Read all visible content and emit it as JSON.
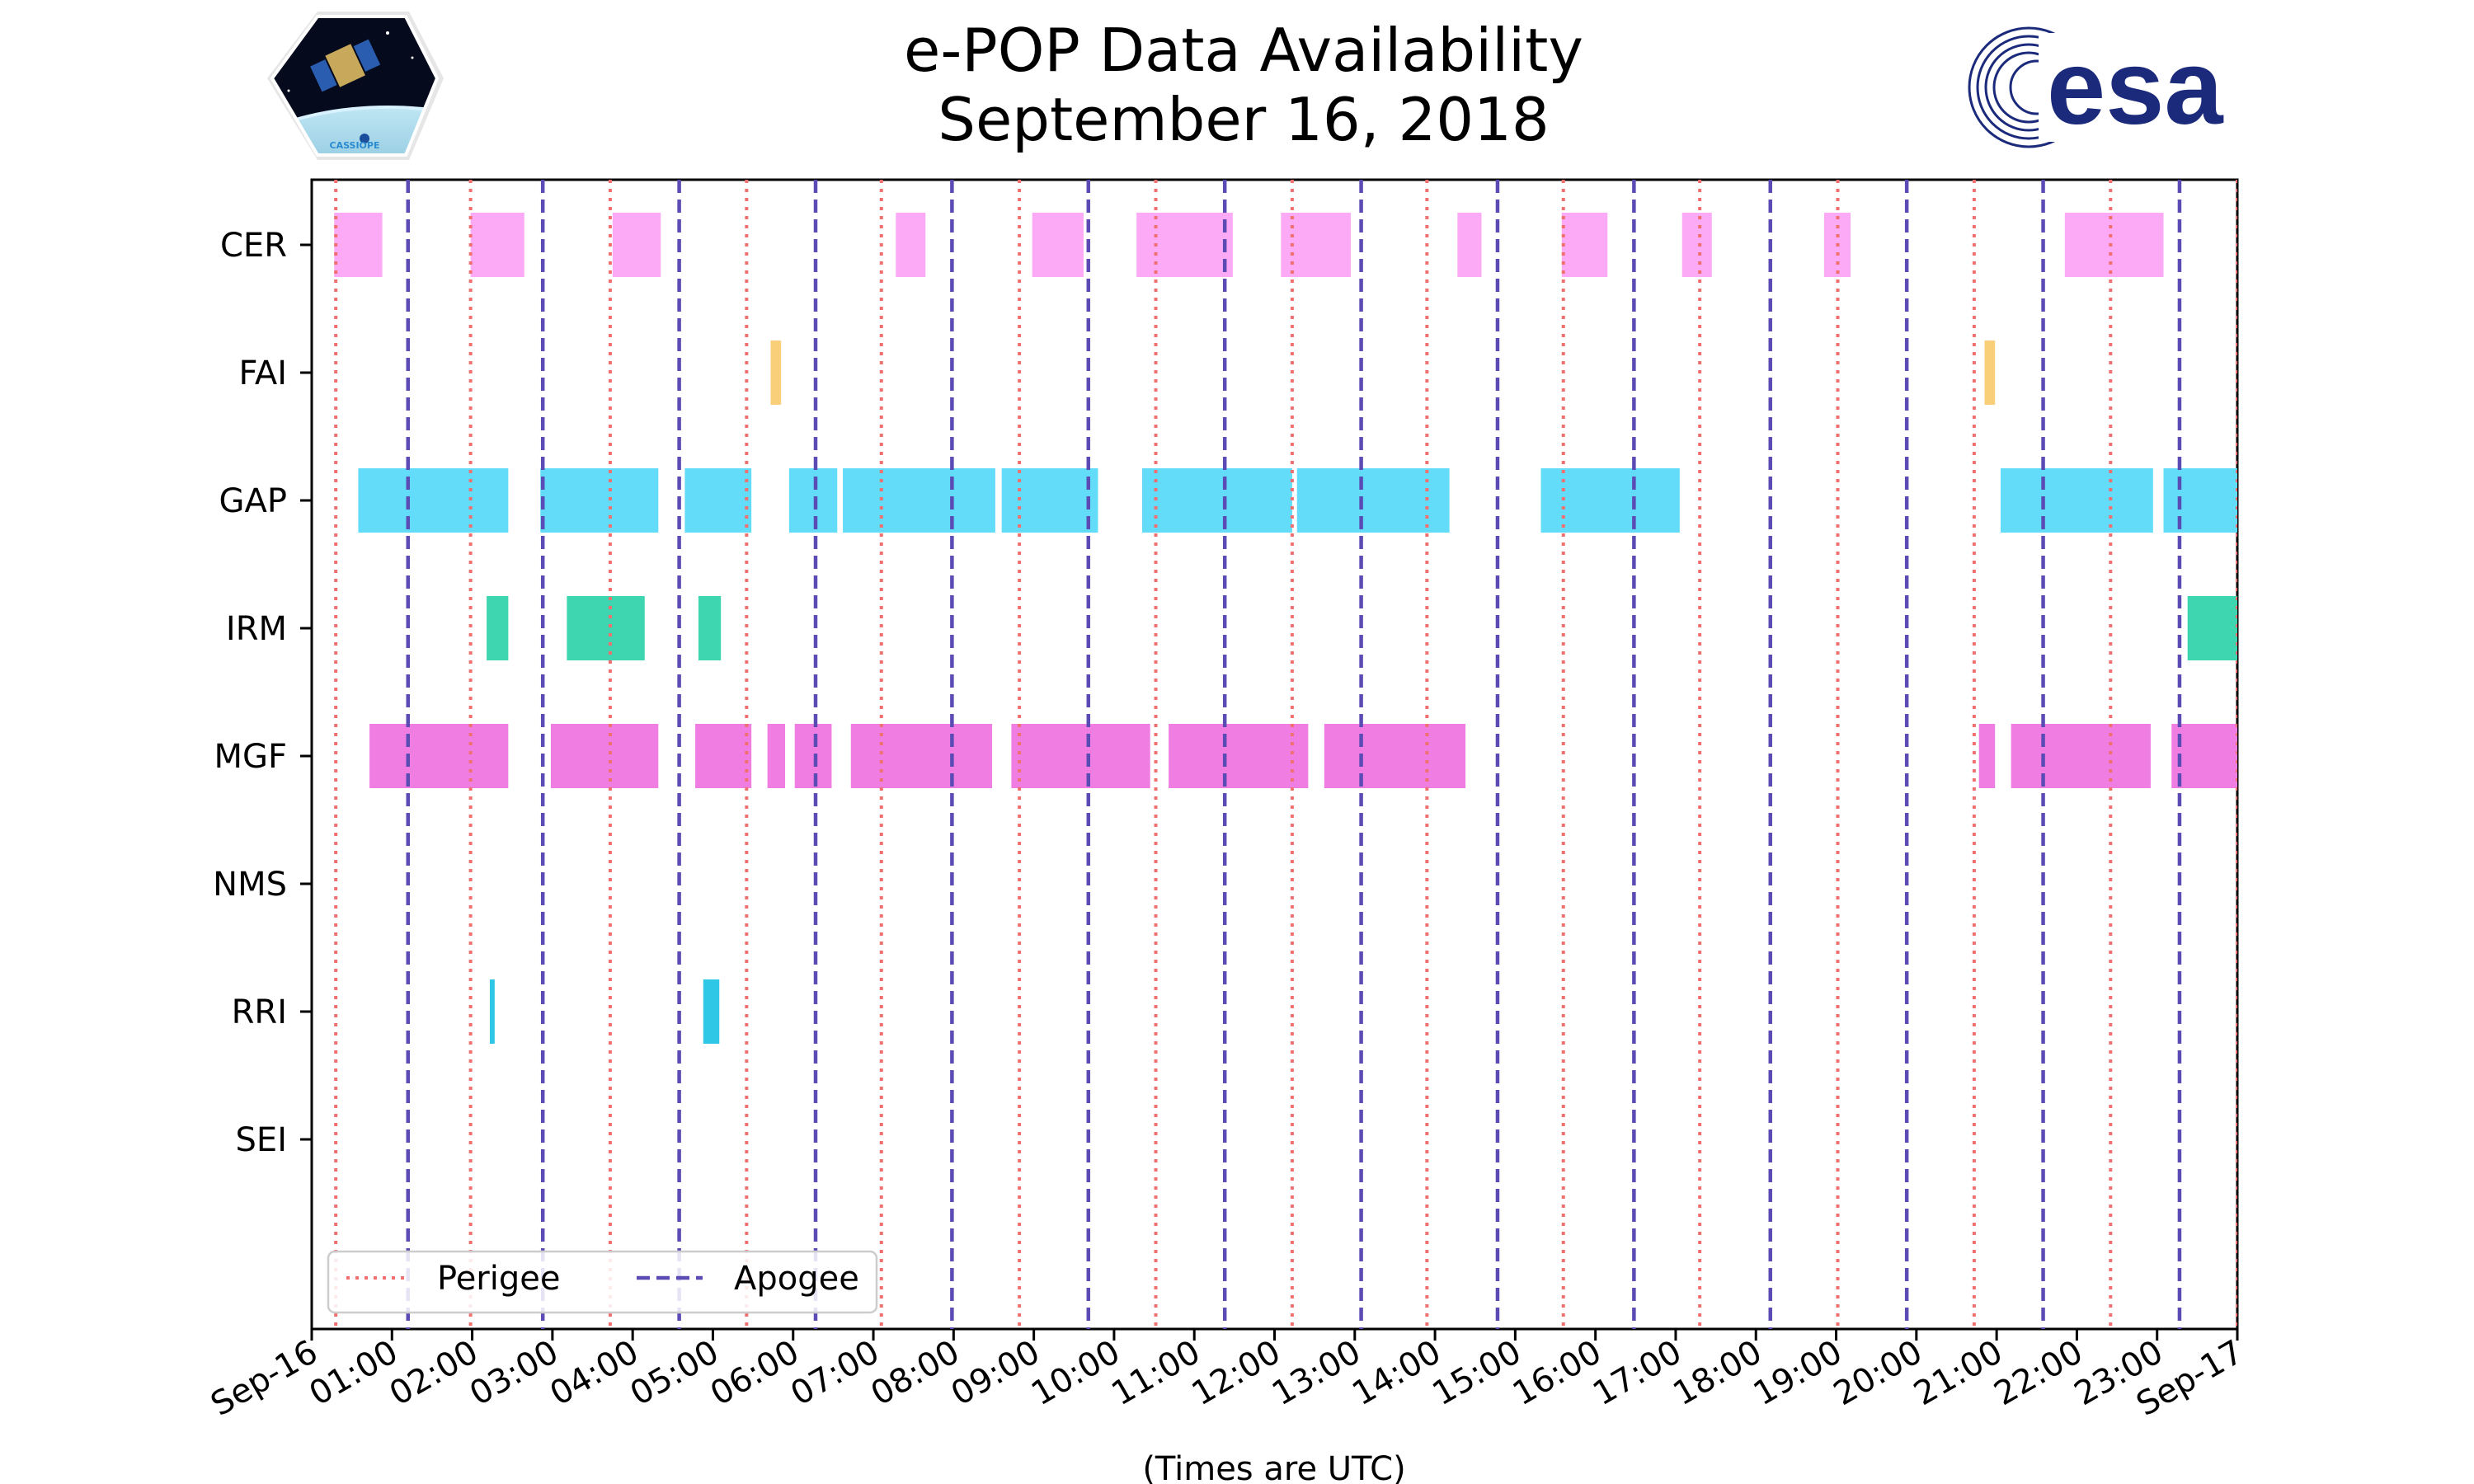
{
  "chart_data": {
    "type": "timeline",
    "title": "e-POP Data Availability",
    "subtitle": "September 16, 2018",
    "xlabel": "(Times are UTC)",
    "xlim_hours": [
      0,
      24
    ],
    "x_ticks": [
      "Sep-16",
      "01:00",
      "02:00",
      "03:00",
      "04:00",
      "05:00",
      "06:00",
      "07:00",
      "08:00",
      "09:00",
      "10:00",
      "11:00",
      "12:00",
      "13:00",
      "14:00",
      "15:00",
      "16:00",
      "17:00",
      "18:00",
      "19:00",
      "20:00",
      "21:00",
      "22:00",
      "23:00",
      "Sep-17"
    ],
    "instruments": [
      {
        "name": "CER",
        "color": "#fcaaf5",
        "intervals": [
          [
            0.28,
            0.88
          ],
          [
            1.98,
            2.65
          ],
          [
            3.75,
            4.35
          ],
          [
            7.28,
            7.65
          ],
          [
            8.98,
            9.62
          ],
          [
            10.28,
            11.48
          ],
          [
            12.08,
            12.95
          ],
          [
            14.28,
            14.58
          ],
          [
            15.58,
            16.15
          ],
          [
            17.08,
            17.45
          ],
          [
            18.85,
            19.18
          ],
          [
            21.85,
            23.08
          ]
        ]
      },
      {
        "name": "FAI",
        "color": "#f9cf7a",
        "intervals": [
          [
            5.72,
            5.85
          ],
          [
            20.85,
            20.98
          ]
        ]
      },
      {
        "name": "GAP",
        "color": "#62dcf8",
        "intervals": [
          [
            0.58,
            2.45
          ],
          [
            2.85,
            4.32
          ],
          [
            4.65,
            5.48
          ],
          [
            5.95,
            6.55
          ],
          [
            6.62,
            8.52
          ],
          [
            8.6,
            9.8
          ],
          [
            10.35,
            12.22
          ],
          [
            12.28,
            14.18
          ],
          [
            15.32,
            17.05
          ],
          [
            21.05,
            22.95
          ],
          [
            23.08,
            24.0
          ]
        ]
      },
      {
        "name": "IRM",
        "color": "#3ed6b0",
        "intervals": [
          [
            2.18,
            2.45
          ],
          [
            3.18,
            4.15
          ],
          [
            4.82,
            5.1
          ],
          [
            23.38,
            24.0
          ]
        ]
      },
      {
        "name": "MGF",
        "color": "#f07ee2",
        "intervals": [
          [
            0.72,
            2.45
          ],
          [
            2.98,
            4.32
          ],
          [
            4.78,
            5.48
          ],
          [
            5.68,
            5.9
          ],
          [
            6.02,
            6.48
          ],
          [
            6.72,
            8.48
          ],
          [
            8.72,
            10.45
          ],
          [
            10.68,
            12.42
          ],
          [
            12.62,
            14.38
          ],
          [
            20.78,
            20.98
          ],
          [
            21.18,
            22.92
          ],
          [
            23.18,
            24.0
          ]
        ]
      },
      {
        "name": "NMS",
        "color": "#000000",
        "intervals": []
      },
      {
        "name": "RRI",
        "color": "#2ec7e6",
        "intervals": [
          [
            2.22,
            2.28
          ],
          [
            4.88,
            5.08
          ]
        ]
      },
      {
        "name": "SEI",
        "color": "#000000",
        "intervals": []
      }
    ],
    "perigee_hours": [
      0.3,
      1.98,
      3.72,
      5.42,
      7.1,
      8.82,
      10.52,
      12.22,
      13.9,
      15.6,
      17.3,
      19.02,
      20.72,
      22.42,
      24.0
    ],
    "apogee_hours": [
      1.2,
      2.88,
      4.58,
      6.28,
      7.98,
      9.68,
      11.38,
      13.08,
      14.78,
      16.48,
      18.18,
      19.88,
      21.58,
      23.28
    ],
    "legend": {
      "position": "lower-left",
      "entries": [
        {
          "label": "Perigee",
          "style": "dotted",
          "color": "#f07070"
        },
        {
          "label": "Apogee",
          "style": "dashed",
          "color": "#5b4bb5"
        }
      ]
    }
  },
  "logos": {
    "left": {
      "name": "CASSIOPE mission patch",
      "text": "CASSIOPE"
    },
    "right": {
      "name": "ESA logo",
      "text": "esa"
    }
  },
  "colors": {
    "perigee": "#f07070",
    "apogee": "#5b4bb5",
    "esa_blue": "#1b2a7b"
  }
}
